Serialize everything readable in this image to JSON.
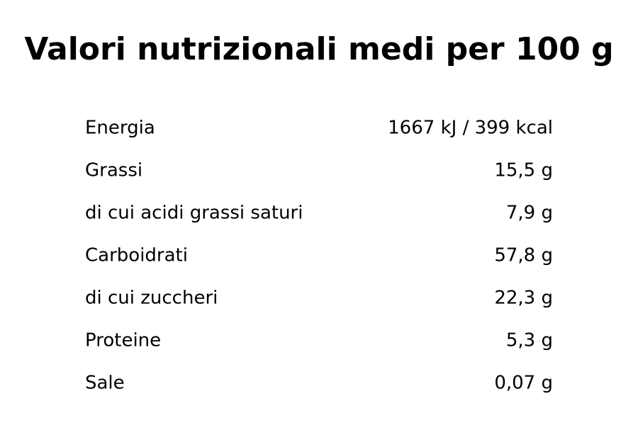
{
  "title": "Valori nutrizionali medi per 100 g",
  "table": {
    "rows": [
      [
        "Energia",
        "1667 kJ / 399 kcal"
      ],
      [
        "Grassi",
        "15,5 g"
      ],
      [
        "di cui acidi grassi saturi",
        "7,9 g"
      ],
      [
        "Carboidrati",
        "57,8 g"
      ],
      [
        "di cui zuccheri",
        "22,3 g"
      ],
      [
        "Proteine",
        "5,3 g"
      ],
      [
        "Sale",
        "0,07 g"
      ]
    ]
  }
}
